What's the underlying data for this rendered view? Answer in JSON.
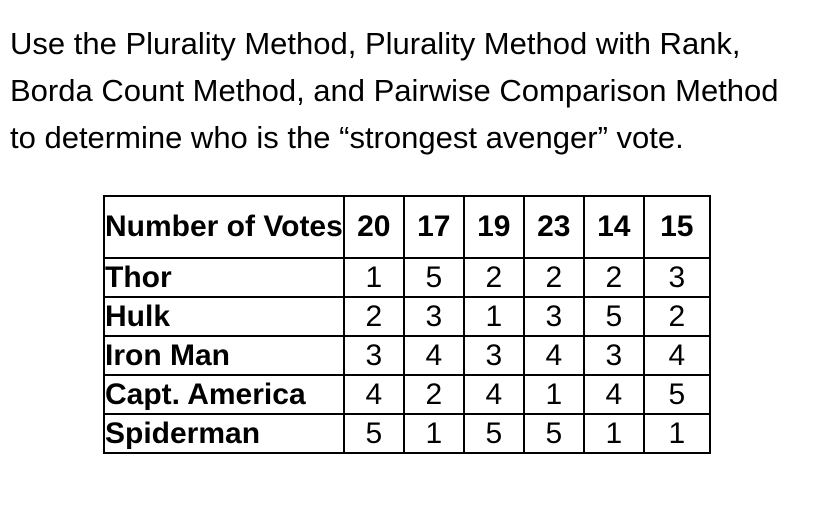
{
  "intro": {
    "lines": [
      "Use the Plurality Method, Plurality Method with Rank,",
      "Borda Count Method, and Pairwise Comparison Method",
      "to determine who is the “strongest avenger” vote."
    ]
  },
  "table": {
    "header": {
      "label": "Number of Votes",
      "counts": [
        "20",
        "17",
        "19",
        "23",
        "14",
        "15"
      ]
    },
    "rows": [
      {
        "name": "Thor",
        "ranks": [
          "1",
          "5",
          "2",
          "2",
          "2",
          "3"
        ]
      },
      {
        "name": "Hulk",
        "ranks": [
          "2",
          "3",
          "1",
          "3",
          "5",
          "2"
        ]
      },
      {
        "name": "Iron Man",
        "ranks": [
          "3",
          "4",
          "3",
          "4",
          "3",
          "4"
        ]
      },
      {
        "name": "Capt. America",
        "ranks": [
          "4",
          "2",
          "4",
          "1",
          "4",
          "5"
        ]
      },
      {
        "name": "Spiderman",
        "ranks": [
          "5",
          "1",
          "5",
          "5",
          "1",
          "1"
        ]
      }
    ]
  }
}
